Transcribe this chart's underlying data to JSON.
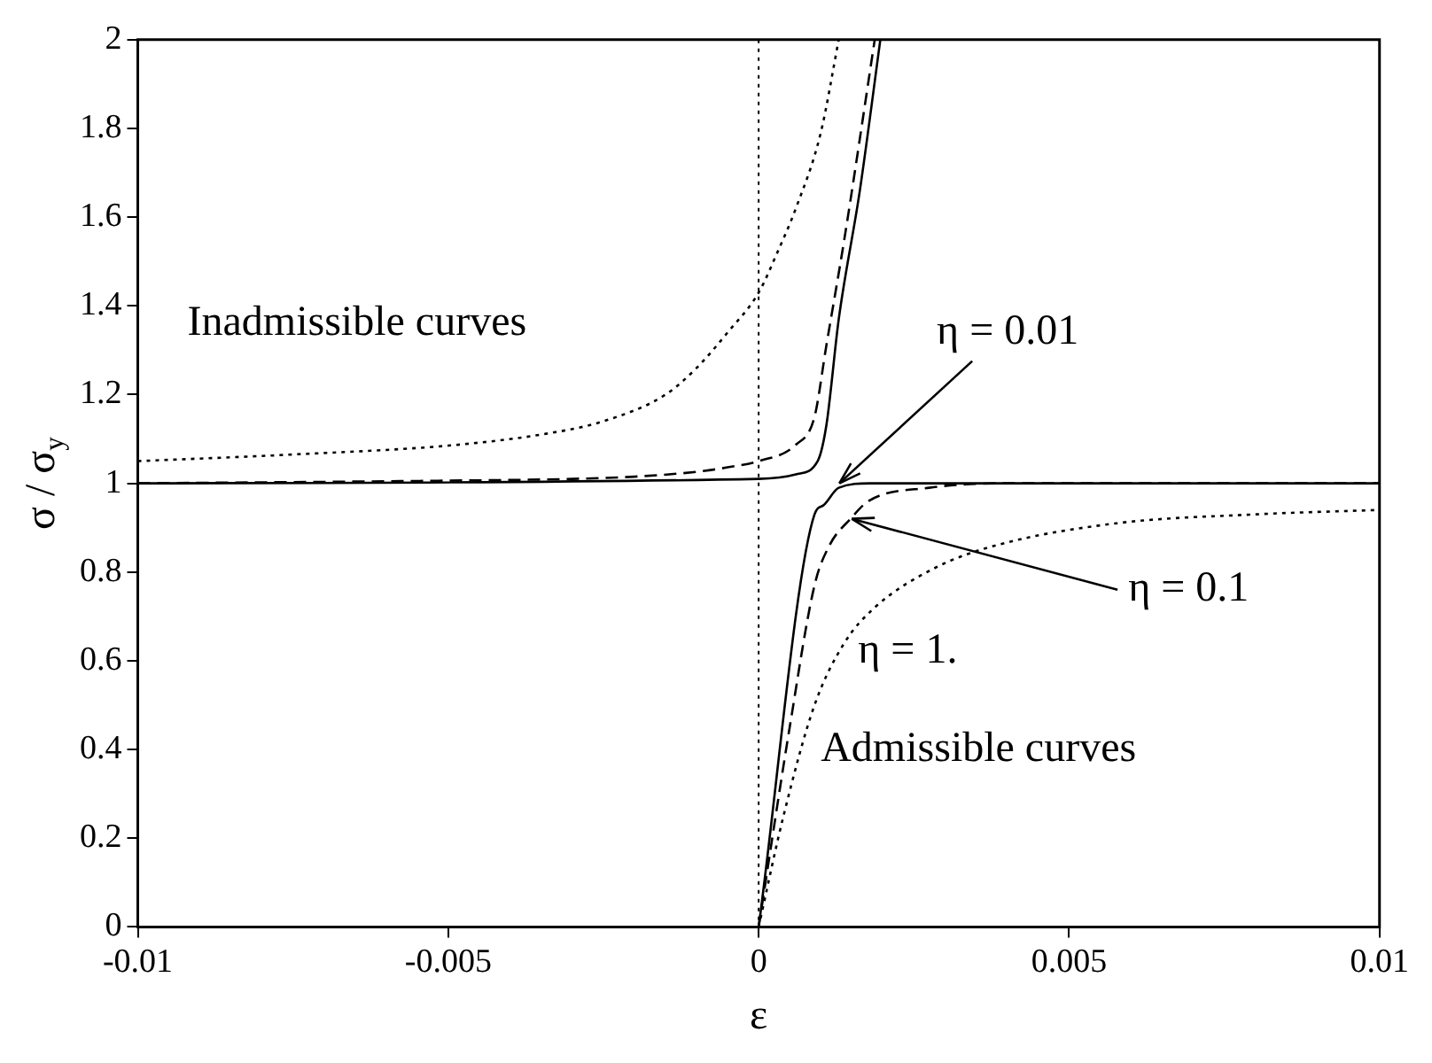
{
  "chart_data": {
    "type": "line",
    "xlabel": "ε",
    "ylabel": "σ / σ$_{y}$",
    "xlim": [
      -0.01,
      0.01
    ],
    "xticks": [
      -0.01,
      -0.005,
      0,
      0.005,
      0.01
    ],
    "ylim": [
      0,
      2
    ],
    "yticks": [
      0,
      0.2,
      0.4,
      0.6,
      0.8,
      1,
      1.2,
      1.4,
      1.6,
      1.8,
      2
    ],
    "grid": false,
    "legend": false,
    "marker": "none",
    "ref_lines": [
      {
        "axis": "x",
        "value": 0,
        "line_style": "dotted",
        "color": "#000000"
      }
    ],
    "series": [
      {
        "color": "#000000",
        "line_style": "solid",
        "x": [
          -0.01,
          0,
          0.0006,
          0.00095,
          0.00109,
          0.00129,
          0.00163,
          0.00196
        ],
        "values": [
          1.0,
          1.01,
          1.02,
          1.05,
          1.13,
          1.37,
          1.66,
          2.0
        ]
      },
      {
        "color": "#000000",
        "line_style": "dashed",
        "x": [
          -0.01,
          -0.005,
          -0.003,
          -0.002,
          -0.001,
          -0.0005,
          0,
          0.0006,
          0.0009,
          0.00109,
          0.00138,
          0.00187
        ],
        "values": [
          1.0,
          1.006,
          1.01,
          1.015,
          1.026,
          1.036,
          1.05,
          1.087,
          1.15,
          1.31,
          1.55,
          2.0
        ]
      },
      {
        "color": "#000000",
        "line_style": "dotted",
        "x": [
          -0.01,
          -0.0075,
          -0.005,
          -0.0035,
          -0.0025,
          -0.0015,
          -0.001,
          -0.0005,
          0,
          0.0003,
          0.0006,
          0.001,
          0.00129
        ],
        "values": [
          1.05,
          1.065,
          1.085,
          1.11,
          1.14,
          1.2,
          1.26,
          1.34,
          1.43,
          1.52,
          1.62,
          1.79,
          2.0
        ]
      },
      {
        "color": "#000000",
        "line_style": "solid",
        "x": [
          0,
          0.0009,
          0.00104,
          0.00129,
          0.0018,
          0.01
        ],
        "values": [
          0,
          0.93,
          0.95,
          0.99,
          1.0,
          1.0
        ]
      },
      {
        "color": "#000000",
        "line_style": "dashed",
        "x": [
          0,
          0.0005,
          0.0009,
          0.00114,
          0.00148,
          0.00177,
          0.00275,
          0.004,
          0.01
        ],
        "values": [
          0,
          0.45,
          0.77,
          0.86,
          0.92,
          0.96,
          0.99,
          1.0,
          1.0
        ]
      },
      {
        "color": "#000000",
        "line_style": "dotted",
        "x": [
          0,
          0.0004,
          0.0009,
          0.00138,
          0.00187,
          0.00285,
          0.00382,
          0.00577,
          0.008,
          0.01
        ],
        "values": [
          0,
          0.25,
          0.5,
          0.64,
          0.72,
          0.81,
          0.86,
          0.91,
          0.93,
          0.94
        ]
      }
    ],
    "annotations": [
      "Inadmissible curves",
      {
        "text": "η = 0.01",
        "x": 0.0013,
        "y": 1.0
      },
      {
        "text": "η = 0.1",
        "x": 0.0015,
        "y": 0.92
      },
      "η = 1.",
      "Admissible curves"
    ]
  }
}
